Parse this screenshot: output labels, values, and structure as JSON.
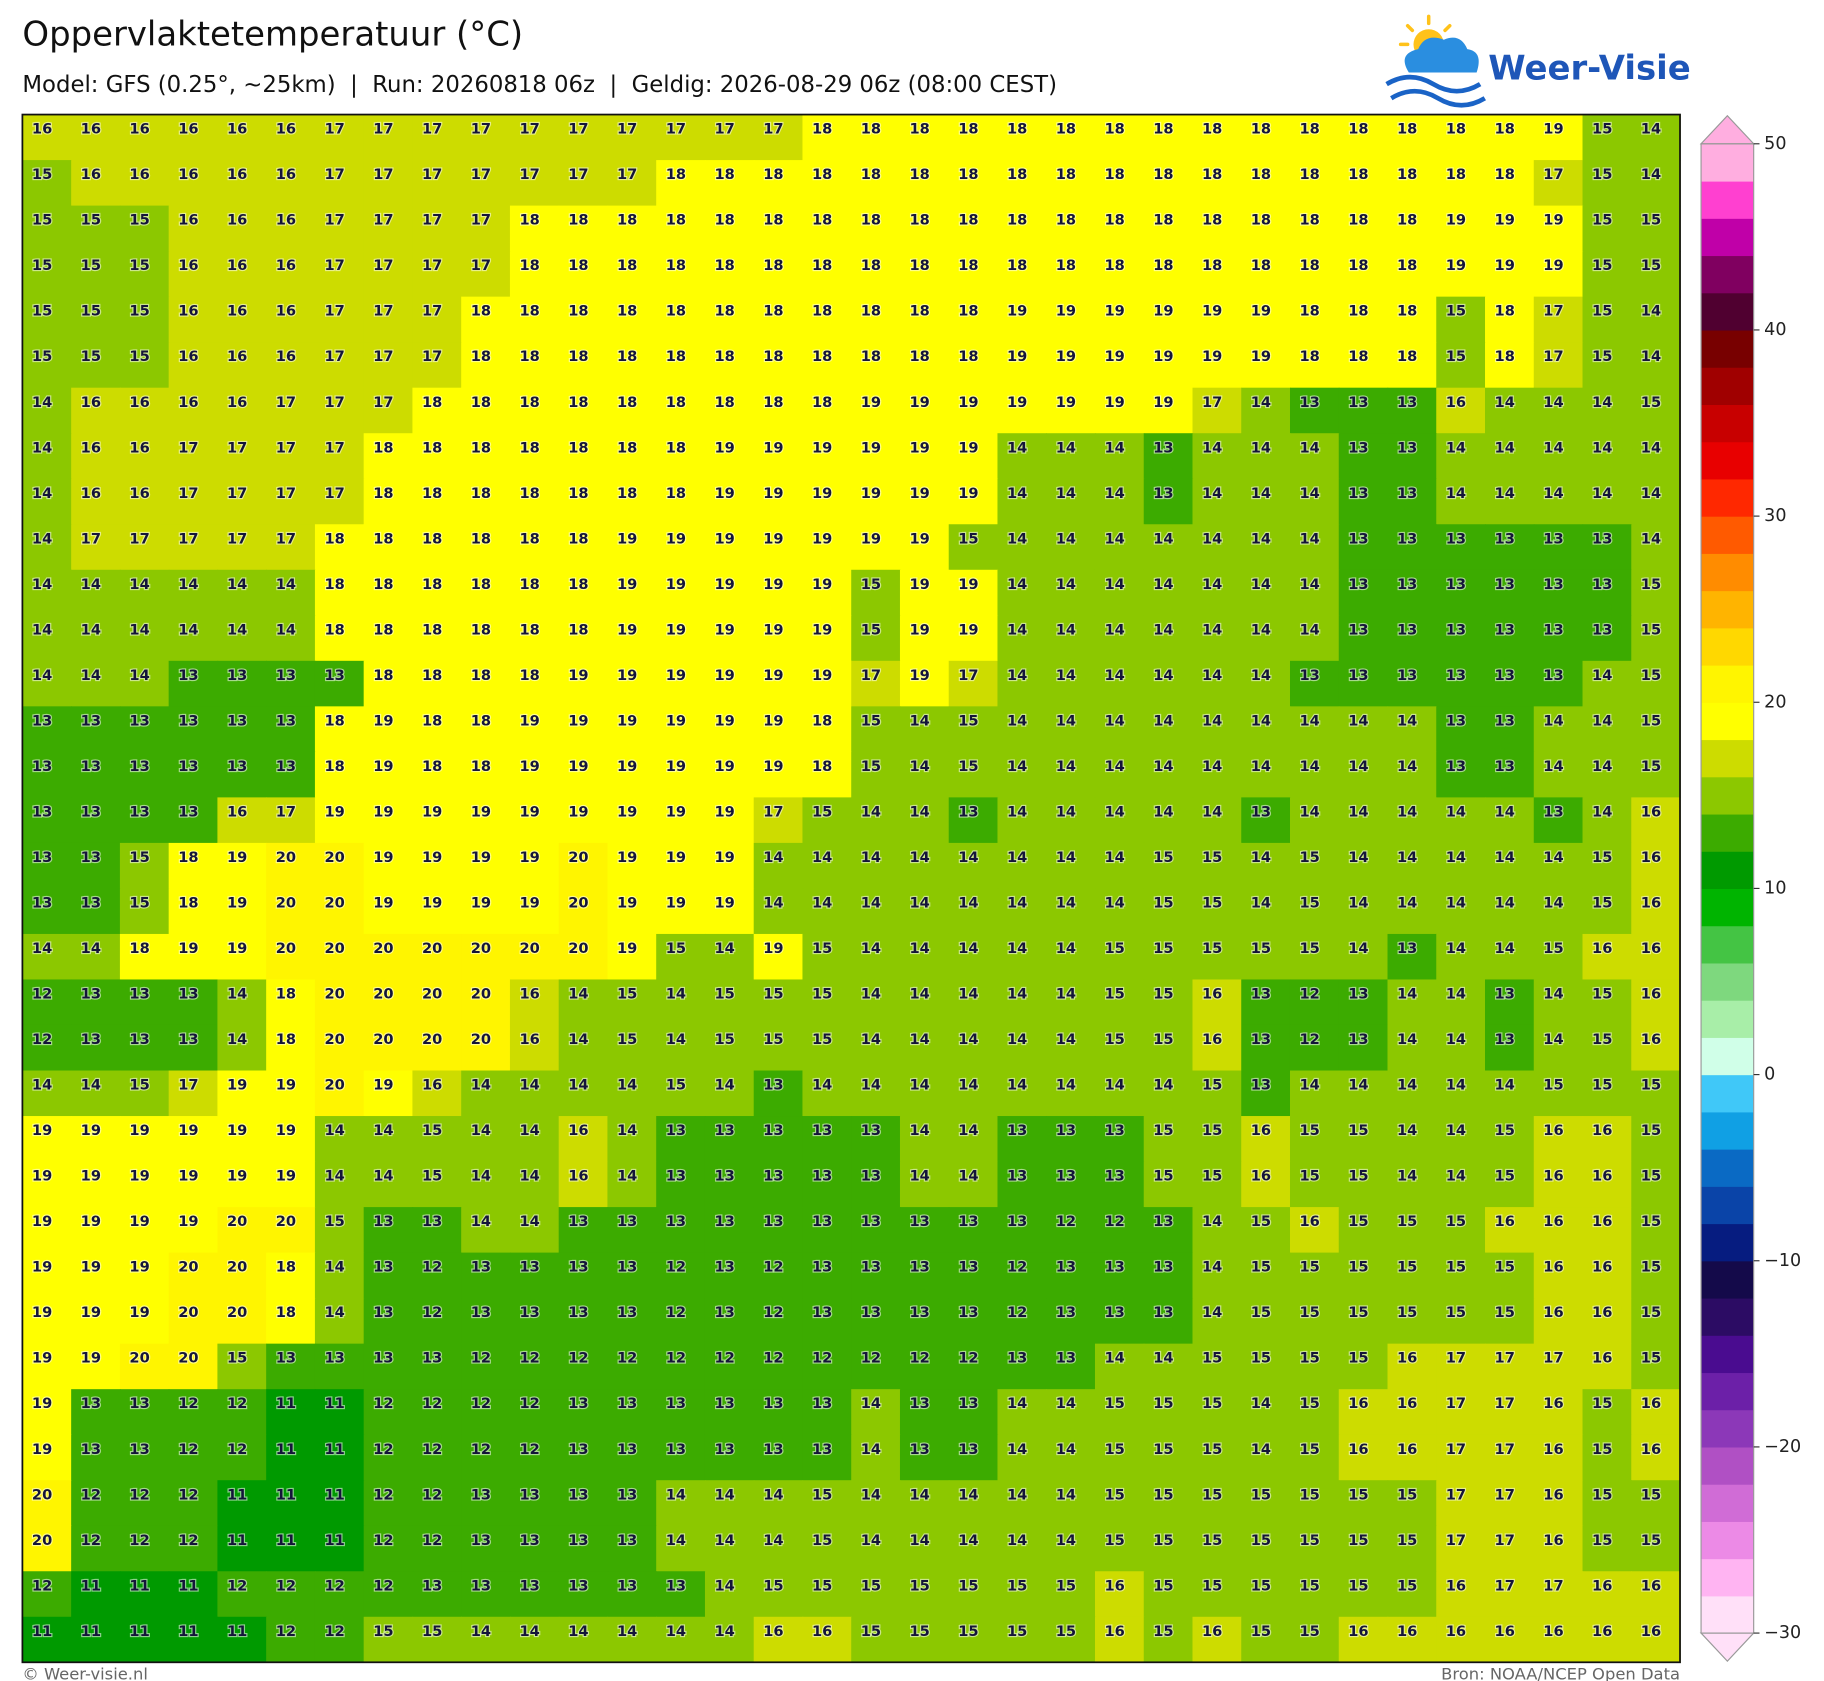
{
  "header": {
    "title": "Oppervlaktetemperatuur (°C)",
    "subtitle": "Model: GFS (0.25°, ~25km)  |  Run: 20260818 06z  |  Geldig: 2026-08-29 06z (08:00 CEST)"
  },
  "logo": "Weer-Visie",
  "map": {
    "type": "grid",
    "rows": [
      [
        16,
        16,
        16,
        16,
        16,
        16,
        17,
        17,
        17,
        17,
        17,
        17,
        17,
        17,
        17,
        17,
        18,
        18,
        18,
        18,
        18,
        18,
        18,
        18,
        18,
        18,
        18,
        18,
        18,
        18,
        18,
        19,
        15,
        14
      ],
      [
        15,
        16,
        16,
        16,
        16,
        16,
        17,
        17,
        17,
        17,
        17,
        17,
        17,
        18,
        18,
        18,
        18,
        18,
        18,
        18,
        18,
        18,
        18,
        18,
        18,
        18,
        18,
        18,
        18,
        18,
        18,
        17,
        15,
        14
      ],
      [
        15,
        15,
        15,
        16,
        16,
        16,
        17,
        17,
        17,
        17,
        18,
        18,
        18,
        18,
        18,
        18,
        18,
        18,
        18,
        18,
        18,
        18,
        18,
        18,
        18,
        18,
        18,
        18,
        18,
        19,
        19,
        19,
        15,
        15
      ],
      [
        15,
        15,
        15,
        16,
        16,
        16,
        17,
        17,
        17,
        17,
        18,
        18,
        18,
        18,
        18,
        18,
        18,
        18,
        18,
        18,
        18,
        18,
        18,
        18,
        18,
        18,
        18,
        18,
        18,
        19,
        19,
        19,
        15,
        15
      ],
      [
        15,
        15,
        15,
        16,
        16,
        16,
        17,
        17,
        17,
        18,
        18,
        18,
        18,
        18,
        18,
        18,
        18,
        18,
        18,
        18,
        19,
        19,
        19,
        19,
        19,
        19,
        18,
        18,
        18,
        15,
        18,
        17,
        15,
        14
      ],
      [
        15,
        15,
        15,
        16,
        16,
        16,
        17,
        17,
        17,
        18,
        18,
        18,
        18,
        18,
        18,
        18,
        18,
        18,
        18,
        18,
        19,
        19,
        19,
        19,
        19,
        19,
        18,
        18,
        18,
        15,
        18,
        17,
        15,
        14
      ],
      [
        14,
        16,
        16,
        16,
        16,
        17,
        17,
        17,
        18,
        18,
        18,
        18,
        18,
        18,
        18,
        18,
        18,
        19,
        19,
        19,
        19,
        19,
        19,
        19,
        17,
        14,
        13,
        13,
        13,
        16,
        14,
        14,
        14,
        15
      ],
      [
        14,
        16,
        16,
        17,
        17,
        17,
        17,
        18,
        18,
        18,
        18,
        18,
        18,
        18,
        19,
        19,
        19,
        19,
        19,
        19,
        14,
        14,
        14,
        13,
        14,
        14,
        14,
        13,
        13,
        14,
        14,
        14,
        14,
        14
      ],
      [
        14,
        16,
        16,
        17,
        17,
        17,
        17,
        18,
        18,
        18,
        18,
        18,
        18,
        18,
        19,
        19,
        19,
        19,
        19,
        19,
        14,
        14,
        14,
        13,
        14,
        14,
        14,
        13,
        13,
        14,
        14,
        14,
        14,
        14
      ],
      [
        14,
        17,
        17,
        17,
        17,
        17,
        18,
        18,
        18,
        18,
        18,
        18,
        19,
        19,
        19,
        19,
        19,
        19,
        19,
        15,
        14,
        14,
        14,
        14,
        14,
        14,
        14,
        13,
        13,
        13,
        13,
        13,
        13,
        14
      ],
      [
        14,
        14,
        14,
        14,
        14,
        14,
        18,
        18,
        18,
        18,
        18,
        18,
        19,
        19,
        19,
        19,
        19,
        15,
        19,
        19,
        14,
        14,
        14,
        14,
        14,
        14,
        14,
        13,
        13,
        13,
        13,
        13,
        13,
        15
      ],
      [
        14,
        14,
        14,
        14,
        14,
        14,
        18,
        18,
        18,
        18,
        18,
        18,
        19,
        19,
        19,
        19,
        19,
        15,
        19,
        19,
        14,
        14,
        14,
        14,
        14,
        14,
        14,
        13,
        13,
        13,
        13,
        13,
        13,
        15
      ],
      [
        14,
        14,
        14,
        13,
        13,
        13,
        13,
        18,
        18,
        18,
        18,
        19,
        19,
        19,
        19,
        19,
        19,
        17,
        19,
        17,
        14,
        14,
        14,
        14,
        14,
        14,
        13,
        13,
        13,
        13,
        13,
        13,
        14,
        15
      ],
      [
        13,
        13,
        13,
        13,
        13,
        13,
        18,
        19,
        18,
        18,
        19,
        19,
        19,
        19,
        19,
        19,
        18,
        15,
        14,
        15,
        14,
        14,
        14,
        14,
        14,
        14,
        14,
        14,
        14,
        13,
        13,
        14,
        14,
        15
      ],
      [
        13,
        13,
        13,
        13,
        13,
        13,
        18,
        19,
        18,
        18,
        19,
        19,
        19,
        19,
        19,
        19,
        18,
        15,
        14,
        15,
        14,
        14,
        14,
        14,
        14,
        14,
        14,
        14,
        14,
        13,
        13,
        14,
        14,
        15
      ],
      [
        13,
        13,
        13,
        13,
        16,
        17,
        19,
        19,
        19,
        19,
        19,
        19,
        19,
        19,
        19,
        17,
        15,
        14,
        14,
        13,
        14,
        14,
        14,
        14,
        14,
        13,
        14,
        14,
        14,
        14,
        14,
        13,
        14,
        16
      ],
      [
        13,
        13,
        15,
        18,
        19,
        20,
        20,
        19,
        19,
        19,
        19,
        20,
        19,
        19,
        19,
        14,
        14,
        14,
        14,
        14,
        14,
        14,
        14,
        15,
        15,
        14,
        15,
        14,
        14,
        14,
        14,
        14,
        15,
        16
      ],
      [
        13,
        13,
        15,
        18,
        19,
        20,
        20,
        19,
        19,
        19,
        19,
        20,
        19,
        19,
        19,
        14,
        14,
        14,
        14,
        14,
        14,
        14,
        14,
        15,
        15,
        14,
        15,
        14,
        14,
        14,
        14,
        14,
        15,
        16
      ],
      [
        14,
        14,
        18,
        19,
        19,
        20,
        20,
        20,
        20,
        20,
        20,
        20,
        19,
        15,
        14,
        19,
        15,
        14,
        14,
        14,
        14,
        14,
        15,
        15,
        15,
        15,
        15,
        14,
        13,
        14,
        14,
        15,
        16,
        16
      ],
      [
        12,
        13,
        13,
        13,
        14,
        18,
        20,
        20,
        20,
        20,
        16,
        14,
        15,
        14,
        15,
        15,
        15,
        14,
        14,
        14,
        14,
        14,
        15,
        15,
        16,
        13,
        12,
        13,
        14,
        14,
        13,
        14,
        15,
        16
      ],
      [
        12,
        13,
        13,
        13,
        14,
        18,
        20,
        20,
        20,
        20,
        16,
        14,
        15,
        14,
        15,
        15,
        15,
        14,
        14,
        14,
        14,
        14,
        15,
        15,
        16,
        13,
        12,
        13,
        14,
        14,
        13,
        14,
        15,
        16
      ],
      [
        14,
        14,
        15,
        17,
        19,
        19,
        20,
        19,
        16,
        14,
        14,
        14,
        14,
        15,
        14,
        13,
        14,
        14,
        14,
        14,
        14,
        14,
        14,
        14,
        15,
        13,
        14,
        14,
        14,
        14,
        14,
        15,
        15,
        15
      ],
      [
        19,
        19,
        19,
        19,
        19,
        19,
        14,
        14,
        15,
        14,
        14,
        16,
        14,
        13,
        13,
        13,
        13,
        13,
        14,
        14,
        13,
        13,
        13,
        15,
        15,
        16,
        15,
        15,
        14,
        14,
        15,
        16,
        16,
        15
      ],
      [
        19,
        19,
        19,
        19,
        19,
        19,
        14,
        14,
        15,
        14,
        14,
        16,
        14,
        13,
        13,
        13,
        13,
        13,
        14,
        14,
        13,
        13,
        13,
        15,
        15,
        16,
        15,
        15,
        14,
        14,
        15,
        16,
        16,
        15
      ],
      [
        19,
        19,
        19,
        19,
        20,
        20,
        15,
        13,
        13,
        14,
        14,
        13,
        13,
        13,
        13,
        13,
        13,
        13,
        13,
        13,
        13,
        12,
        12,
        13,
        14,
        15,
        16,
        15,
        15,
        15,
        16,
        16,
        16,
        15
      ],
      [
        19,
        19,
        19,
        20,
        20,
        18,
        14,
        13,
        12,
        13,
        13,
        13,
        13,
        12,
        13,
        12,
        13,
        13,
        13,
        13,
        12,
        13,
        13,
        13,
        14,
        15,
        15,
        15,
        15,
        15,
        15,
        16,
        16,
        15
      ],
      [
        19,
        19,
        19,
        20,
        20,
        18,
        14,
        13,
        12,
        13,
        13,
        13,
        13,
        12,
        13,
        12,
        13,
        13,
        13,
        13,
        12,
        13,
        13,
        13,
        14,
        15,
        15,
        15,
        15,
        15,
        15,
        16,
        16,
        15
      ],
      [
        19,
        19,
        20,
        20,
        15,
        13,
        13,
        13,
        13,
        12,
        12,
        12,
        12,
        12,
        12,
        12,
        12,
        12,
        12,
        12,
        13,
        13,
        14,
        14,
        15,
        15,
        15,
        15,
        16,
        17,
        17,
        17,
        16,
        15
      ],
      [
        19,
        13,
        13,
        12,
        12,
        11,
        11,
        12,
        12,
        12,
        12,
        13,
        13,
        13,
        13,
        13,
        13,
        14,
        13,
        13,
        14,
        14,
        15,
        15,
        15,
        14,
        15,
        16,
        16,
        17,
        17,
        16,
        15,
        16
      ],
      [
        19,
        13,
        13,
        12,
        12,
        11,
        11,
        12,
        12,
        12,
        12,
        13,
        13,
        13,
        13,
        13,
        13,
        14,
        13,
        13,
        14,
        14,
        15,
        15,
        15,
        14,
        15,
        16,
        16,
        17,
        17,
        16,
        15,
        16
      ],
      [
        20,
        12,
        12,
        12,
        11,
        11,
        11,
        12,
        12,
        13,
        13,
        13,
        13,
        14,
        14,
        14,
        15,
        14,
        14,
        14,
        14,
        14,
        15,
        15,
        15,
        15,
        15,
        15,
        15,
        17,
        17,
        16,
        15,
        15
      ],
      [
        20,
        12,
        12,
        12,
        11,
        11,
        11,
        12,
        12,
        13,
        13,
        13,
        13,
        14,
        14,
        14,
        15,
        14,
        14,
        14,
        14,
        14,
        15,
        15,
        15,
        15,
        15,
        15,
        15,
        17,
        17,
        16,
        15,
        15
      ],
      [
        12,
        11,
        11,
        11,
        12,
        12,
        12,
        12,
        13,
        13,
        13,
        13,
        13,
        13,
        14,
        15,
        15,
        15,
        15,
        15,
        15,
        15,
        16,
        15,
        15,
        15,
        15,
        15,
        15,
        16,
        17,
        17,
        16,
        16
      ],
      [
        11,
        11,
        11,
        11,
        11,
        12,
        12,
        15,
        15,
        14,
        14,
        14,
        14,
        14,
        14,
        16,
        16,
        15,
        15,
        15,
        15,
        15,
        16,
        15,
        16,
        15,
        15,
        16,
        16,
        16,
        16,
        16,
        16,
        16
      ]
    ]
  },
  "colorbar": {
    "lim": [
      -30,
      50
    ],
    "ticks": [
      {
        "value": -30,
        "label": "−30"
      },
      {
        "value": -20,
        "label": "−20"
      },
      {
        "value": -10,
        "label": "−10"
      },
      0,
      10,
      20,
      30,
      40,
      50
    ],
    "colors": [
      "#ffe0f8",
      "#ffb4f2",
      "#ec8ae6",
      "#d06cd6",
      "#b050c4",
      "#8c38b8",
      "#6c20a8",
      "#4a0c90",
      "#2c0c64",
      "#140a4a",
      "#061c80",
      "#0a44a8",
      "#0a6ac4",
      "#10a0e4",
      "#40c8f8",
      "#d0ffe8",
      "#a8eea8",
      "#7ed87e",
      "#44c444",
      "#00b400",
      "#009a00",
      "#3cab00",
      "#8cc800",
      "#cddc00",
      "#ffff00",
      "#fff500",
      "#ffd800",
      "#ffb400",
      "#ff8c00",
      "#ff5a00",
      "#ff2800",
      "#e80000",
      "#c80000",
      "#a00000",
      "#780000",
      "#500030",
      "#800060",
      "#c000a8",
      "#ff40d0",
      "#ffaee0"
    ]
  },
  "footer": {
    "credit": "© Weer-visie.nl",
    "source": "Bron: NOAA/NCEP Open Data"
  }
}
